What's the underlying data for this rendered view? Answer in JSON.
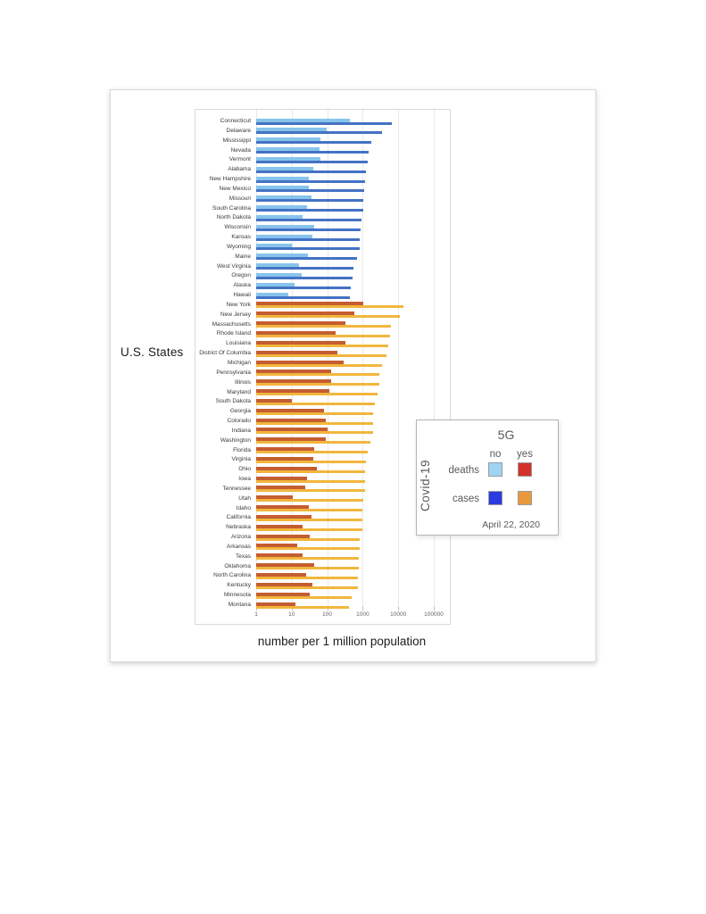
{
  "y_axis_title": "U.S. States",
  "x_axis_title": "number per 1 million population",
  "legend": {
    "title": "5G",
    "col_no": "no",
    "col_yes": "yes",
    "rotated_label": "Covid-19",
    "deaths_label": "deaths",
    "cases_label": "cases",
    "date": "April 22, 2020"
  },
  "colors": {
    "bar_deaths_no": "#87C3EC",
    "bar_cases_no": "#4472C4",
    "bar_deaths_yes": "#C45D30",
    "bar_cases_yes": "#F2B63D",
    "legend_deaths_no": "#9FD3F2",
    "legend_deaths_yes": "#D3312A",
    "legend_cases_no": "#2A3BE0",
    "legend_cases_yes": "#E8993C",
    "gridline": "#e8e8e8"
  },
  "chart_data": {
    "type": "bar",
    "orientation": "horizontal",
    "x_scale": "log",
    "x_ticks": [
      1,
      10,
      100,
      1000,
      10000,
      100000
    ],
    "xlim": [
      1,
      100000
    ],
    "xlabel": "number per 1 million population",
    "ylabel": "U.S. States",
    "grid": true,
    "legend_position": "right-middle-overlay",
    "series_meta": [
      {
        "name": "deaths",
        "group_no_color": "light-blue",
        "group_yes_color": "red"
      },
      {
        "name": "cases",
        "group_no_color": "blue",
        "group_yes_color": "orange"
      }
    ],
    "note": "states grouped by 5G availability; values are per 1 million population on April 22, 2020",
    "states": [
      {
        "name": "Connecticut",
        "five_g": "no",
        "deaths": 435,
        "cases": 6500
      },
      {
        "name": "Delaware",
        "five_g": "no",
        "deaths": 95,
        "cases": 3400
      },
      {
        "name": "Mississippi",
        "five_g": "no",
        "deaths": 64,
        "cases": 1700
      },
      {
        "name": "Nevada",
        "five_g": "no",
        "deaths": 60,
        "cases": 1450
      },
      {
        "name": "Vermont",
        "five_g": "no",
        "deaths": 64,
        "cases": 1350
      },
      {
        "name": "Alabama",
        "five_g": "no",
        "deaths": 41,
        "cases": 1230
      },
      {
        "name": "New Hampshire",
        "five_g": "no",
        "deaths": 30,
        "cases": 1150
      },
      {
        "name": "New Mexico",
        "five_g": "no",
        "deaths": 31,
        "cases": 1100
      },
      {
        "name": "Missouri",
        "five_g": "no",
        "deaths": 36,
        "cases": 1050
      },
      {
        "name": "South Carolina",
        "five_g": "no",
        "deaths": 27,
        "cases": 1020
      },
      {
        "name": "North Dakota",
        "five_g": "no",
        "deaths": 20,
        "cases": 900
      },
      {
        "name": "Wisconsin",
        "five_g": "no",
        "deaths": 44,
        "cases": 860
      },
      {
        "name": "Kansas",
        "five_g": "no",
        "deaths": 38,
        "cases": 830
      },
      {
        "name": "Wyoming",
        "five_g": "no",
        "deaths": 10,
        "cases": 800
      },
      {
        "name": "Maine",
        "five_g": "no",
        "deaths": 29,
        "cases": 700
      },
      {
        "name": "West Virginia",
        "five_g": "no",
        "deaths": 16,
        "cases": 540
      },
      {
        "name": "Oregon",
        "five_g": "no",
        "deaths": 19,
        "cases": 510
      },
      {
        "name": "Alaska",
        "five_g": "no",
        "deaths": 12,
        "cases": 470
      },
      {
        "name": "Hawaii",
        "five_g": "no",
        "deaths": 8,
        "cases": 430
      },
      {
        "name": "New York",
        "five_g": "yes",
        "deaths": 1030,
        "cases": 14000
      },
      {
        "name": "New Jersey",
        "five_g": "yes",
        "deaths": 580,
        "cases": 10800
      },
      {
        "name": "Massachusetts",
        "five_g": "yes",
        "deaths": 330,
        "cases": 6300
      },
      {
        "name": "Rhode Island",
        "five_g": "yes",
        "deaths": 170,
        "cases": 5700
      },
      {
        "name": "Louisiana",
        "five_g": "yes",
        "deaths": 320,
        "cases": 5300
      },
      {
        "name": "District Of Columbia",
        "five_g": "yes",
        "deaths": 190,
        "cases": 4600
      },
      {
        "name": "Michigan",
        "five_g": "yes",
        "deaths": 290,
        "cases": 3500
      },
      {
        "name": "Pennsylvania",
        "five_g": "yes",
        "deaths": 130,
        "cases": 2900
      },
      {
        "name": "Illinois",
        "five_g": "yes",
        "deaths": 125,
        "cases": 2850
      },
      {
        "name": "Maryland",
        "five_g": "yes",
        "deaths": 115,
        "cases": 2600
      },
      {
        "name": "South Dakota",
        "five_g": "yes",
        "deaths": 10,
        "cases": 2200
      },
      {
        "name": "Georgia",
        "five_g": "yes",
        "deaths": 80,
        "cases": 1970
      },
      {
        "name": "Colorado",
        "five_g": "yes",
        "deaths": 90,
        "cases": 1950
      },
      {
        "name": "Indiana",
        "five_g": "yes",
        "deaths": 100,
        "cases": 1900
      },
      {
        "name": "Washington",
        "five_g": "yes",
        "deaths": 93,
        "cases": 1650
      },
      {
        "name": "Florida",
        "five_g": "yes",
        "deaths": 43,
        "cases": 1400
      },
      {
        "name": "Virginia",
        "five_g": "yes",
        "deaths": 40,
        "cases": 1200
      },
      {
        "name": "Ohio",
        "five_g": "yes",
        "deaths": 51,
        "cases": 1180
      },
      {
        "name": "Iowa",
        "five_g": "yes",
        "deaths": 27,
        "cases": 1160
      },
      {
        "name": "Tennessee",
        "five_g": "yes",
        "deaths": 24,
        "cases": 1130
      },
      {
        "name": "Utah",
        "five_g": "yes",
        "deaths": 11,
        "cases": 1040
      },
      {
        "name": "Idaho",
        "five_g": "yes",
        "deaths": 30,
        "cases": 1000
      },
      {
        "name": "California",
        "five_g": "yes",
        "deaths": 37,
        "cases": 980
      },
      {
        "name": "Nebraska",
        "five_g": "yes",
        "deaths": 20,
        "cases": 950
      },
      {
        "name": "Arizona",
        "five_g": "yes",
        "deaths": 33,
        "cases": 810
      },
      {
        "name": "Arkansas",
        "five_g": "yes",
        "deaths": 14,
        "cases": 800
      },
      {
        "name": "Texas",
        "five_g": "yes",
        "deaths": 20,
        "cases": 770
      },
      {
        "name": "Oklahoma",
        "five_g": "yes",
        "deaths": 43,
        "cases": 760
      },
      {
        "name": "North Carolina",
        "five_g": "yes",
        "deaths": 26,
        "cases": 750
      },
      {
        "name": "Kentucky",
        "five_g": "yes",
        "deaths": 38,
        "cases": 710
      },
      {
        "name": "Minnesota",
        "five_g": "yes",
        "deaths": 33,
        "cases": 500
      },
      {
        "name": "Montana",
        "five_g": "yes",
        "deaths": 13,
        "cases": 410
      }
    ]
  }
}
